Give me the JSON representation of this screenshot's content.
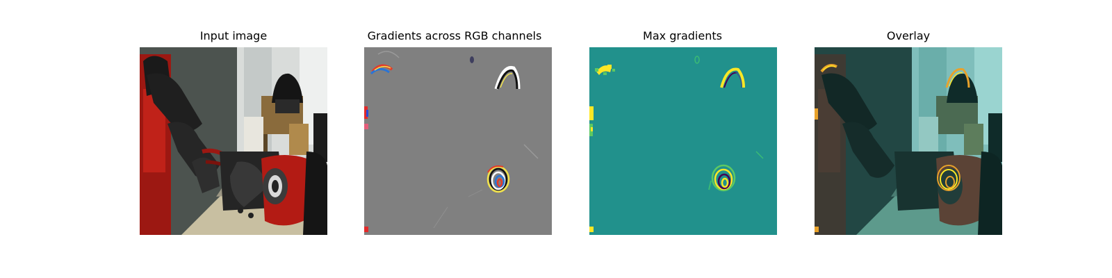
{
  "figure": {
    "panels": [
      {
        "title": "Input image",
        "content": "robot-arm-scene-photo"
      },
      {
        "title": "Gradients across RGB channels",
        "content": "rgb-gradient-map"
      },
      {
        "title": "Max gradients",
        "content": "max-gradient-heatmap"
      },
      {
        "title": "Overlay",
        "content": "gradient-overlay-on-photo"
      }
    ]
  },
  "colors": {
    "gradient_gray": "#808080",
    "heatmap_background": "#21918c",
    "heatmap_high": "#fde725",
    "overlay_tint": "#2a9a94",
    "robot_red": "#b31b14"
  }
}
